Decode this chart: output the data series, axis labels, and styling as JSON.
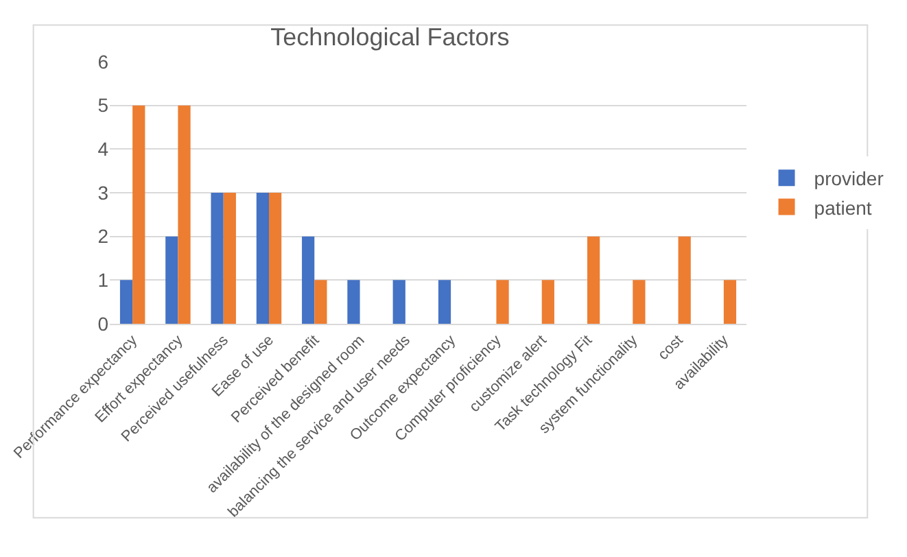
{
  "chart_data": {
    "type": "bar",
    "title": "Technological Factors",
    "categories": [
      "Performance expectancy",
      "Effort expectancy",
      "Perceived usefulness",
      "Ease of use",
      "Perceived benefit",
      "availability of the designed room",
      "balancing the service and user needs",
      "Outcome expectancy",
      "Computer proficiency",
      "customize alert",
      "Task technology Fit",
      "system functionality",
      "cost",
      "availability"
    ],
    "series": [
      {
        "name": "provider",
        "color": "#4472c4",
        "values": [
          1,
          2,
          3,
          3,
          2,
          1,
          1,
          1,
          null,
          null,
          null,
          null,
          null,
          null
        ]
      },
      {
        "name": "patient",
        "color": "#ed7d31",
        "values": [
          5,
          5,
          3,
          3,
          1,
          null,
          null,
          null,
          1,
          1,
          2,
          1,
          2,
          1
        ]
      }
    ],
    "ylim": [
      0,
      6
    ],
    "yticks": [
      0,
      1,
      2,
      3,
      4,
      5,
      6
    ],
    "grid": "y",
    "legend": "right"
  }
}
